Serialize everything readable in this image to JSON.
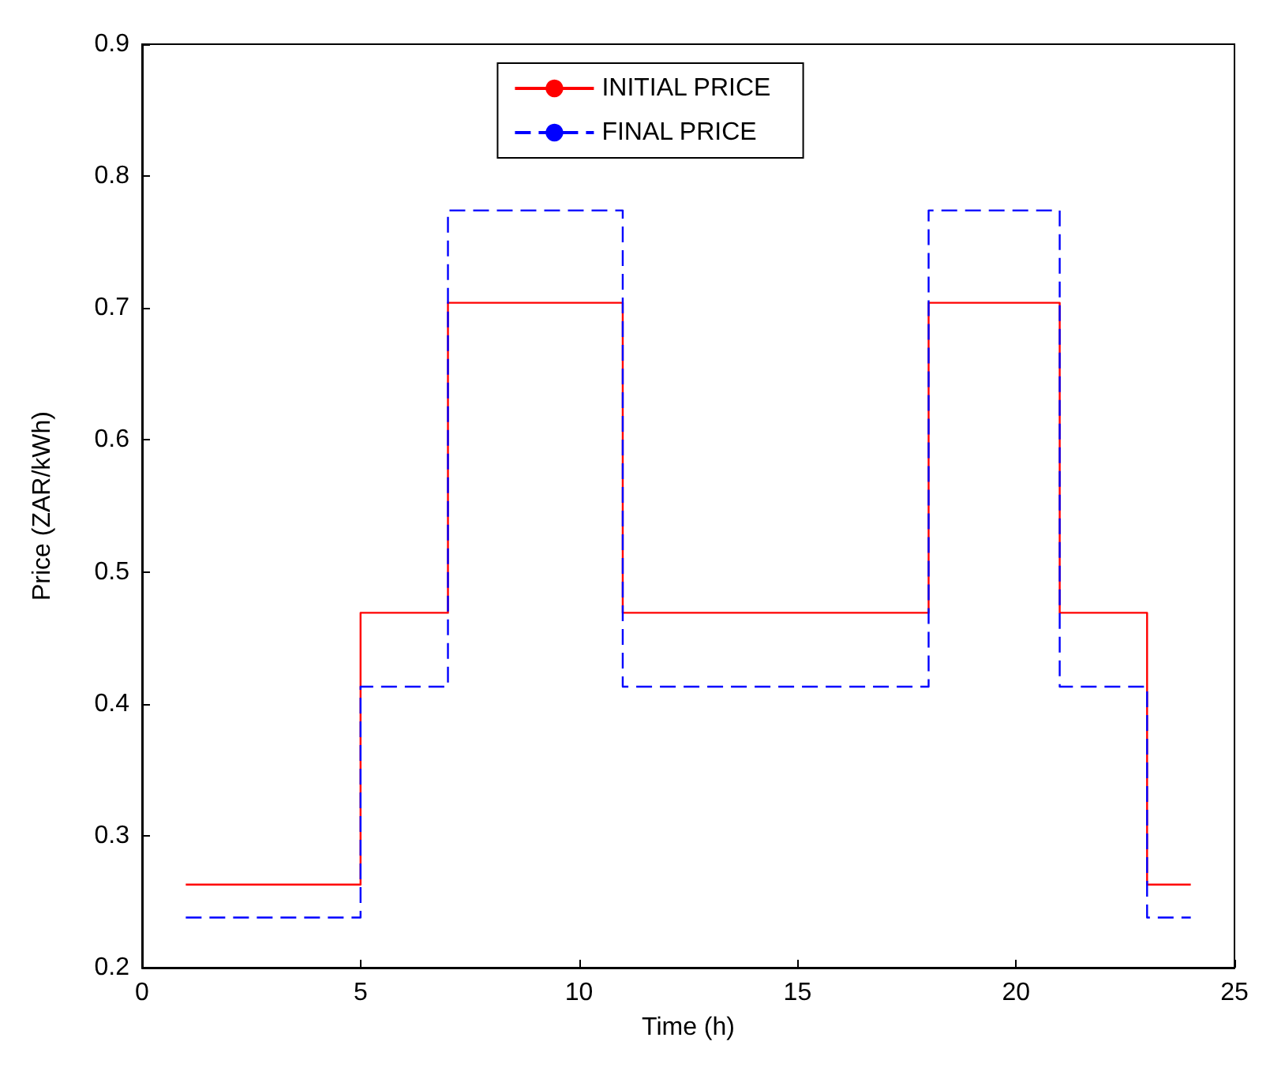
{
  "chart_data": {
    "type": "step",
    "xlabel": "Time (h)",
    "ylabel": "Price (ZAR/kWh)",
    "x": [
      1,
      5,
      7,
      11,
      18,
      21,
      23,
      24
    ],
    "series": [
      {
        "name": "INITIAL PRICE",
        "color": "#ff0000",
        "line_style": "solid",
        "values": [
          0.263,
          0.469,
          0.704,
          0.469,
          0.704,
          0.469,
          0.263,
          0.263
        ]
      },
      {
        "name": "FINAL PRICE",
        "color": "#0000ff",
        "line_style": "dashed",
        "values": [
          0.238,
          0.413,
          0.774,
          0.413,
          0.774,
          0.413,
          0.238,
          0.238
        ]
      }
    ],
    "xlim": [
      0,
      25
    ],
    "xticks": [
      0,
      5,
      10,
      15,
      20,
      25
    ],
    "ylim": [
      0.2,
      0.9
    ],
    "yticks": [
      0.2,
      0.3,
      0.4,
      0.5,
      0.6,
      0.7,
      0.8,
      0.9
    ],
    "grid": false,
    "legend": "top",
    "marker": "none"
  }
}
